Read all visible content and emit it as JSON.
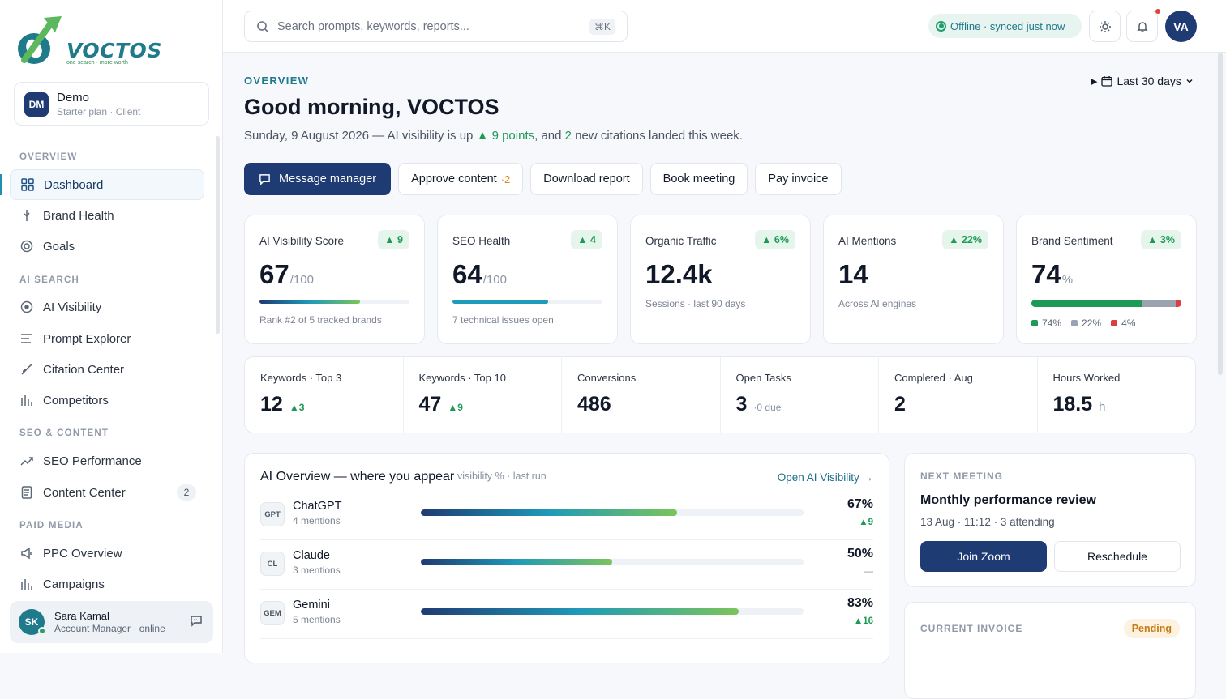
{
  "brand": {
    "name": "VOCTOS",
    "tagline": "one search · more worth"
  },
  "workspace": {
    "initials": "DM",
    "name": "Demo",
    "plan": "Starter plan · Client"
  },
  "sidebar": {
    "sections": [
      {
        "title": "OVERVIEW",
        "items": [
          {
            "label": "Dashboard",
            "icon": "grid-icon",
            "active": true
          },
          {
            "label": "Brand Health",
            "icon": "pulse-icon"
          },
          {
            "label": "Goals",
            "icon": "target-icon"
          }
        ]
      },
      {
        "title": "AI SEARCH",
        "items": [
          {
            "label": "AI Visibility",
            "icon": "eye-icon"
          },
          {
            "label": "Prompt Explorer",
            "icon": "list-icon"
          },
          {
            "label": "Citation Center",
            "icon": "link-icon"
          },
          {
            "label": "Competitors",
            "icon": "bar-chart-icon"
          }
        ]
      },
      {
        "title": "SEO & CONTENT",
        "items": [
          {
            "label": "SEO Performance",
            "icon": "trend-up-icon"
          },
          {
            "label": "Content Center",
            "icon": "document-icon",
            "count": "2"
          }
        ]
      },
      {
        "title": "PAID MEDIA",
        "items": [
          {
            "label": "PPC Overview",
            "icon": "megaphone-icon"
          },
          {
            "label": "Campaigns",
            "icon": "bar-chart-icon"
          }
        ]
      }
    ]
  },
  "user": {
    "initials": "SK",
    "name": "Sara Kamal",
    "role": "Account Manager · online"
  },
  "topbar": {
    "search_placeholder": "Search prompts, keywords, reports...",
    "shortcut": "⌘K",
    "status": "Offline · synced just now",
    "avatar": "VA"
  },
  "header": {
    "eyebrow": "OVERVIEW",
    "greeting": "Good morning, VOCTOS",
    "sub_prefix": "Sunday, 9 August 2026 — AI visibility is up ",
    "sub_points": "▲ 9 points",
    "sub_mid": ", and ",
    "sub_count": "2",
    "sub_suffix": " new citations landed this week.",
    "range": "Last 30 days"
  },
  "actions": {
    "message": "Message manager",
    "approve": "Approve content",
    "approve_badge": "·2",
    "download": "Download report",
    "book": "Book meeting",
    "pay": "Pay invoice"
  },
  "kpis": [
    {
      "title": "AI Visibility Score",
      "delta": "▲ 9",
      "value": "67",
      "suffix": "/100",
      "progress": 0.67,
      "note": "Rank #2 of 5 tracked brands",
      "color": "#1f3b73"
    },
    {
      "title": "SEO Health",
      "delta": "▲ 4",
      "value": "64",
      "suffix": "/100",
      "progress": 0.64,
      "note": "7 technical issues open",
      "color": "#1f9ab8"
    },
    {
      "title": "Organic Traffic",
      "delta": "▲ 6%",
      "value": "12.4k",
      "note": "Sessions · last 90 days"
    },
    {
      "title": "AI Mentions",
      "delta": "▲ 22%",
      "value": "14",
      "note": "Across AI engines"
    },
    {
      "title": "Brand Sentiment",
      "delta": "▲ 3%",
      "value": "74",
      "suffix": "%",
      "sentiment": {
        "positive": "74%",
        "neutral": "22%",
        "negative": "4%"
      }
    }
  ],
  "stats": [
    {
      "label": "Keywords · Top 3",
      "value": "12",
      "sub": "▲3"
    },
    {
      "label": "Keywords · Top 10",
      "value": "47",
      "sub": "▲9"
    },
    {
      "label": "Conversions",
      "value": "486",
      "sub": ""
    },
    {
      "label": "Open Tasks",
      "value": "3",
      "sub": "·0 due"
    },
    {
      "label": "Completed · Aug",
      "value": "2",
      "sub": ""
    },
    {
      "label": "Hours Worked",
      "value": "18.5",
      "sub": "h"
    }
  ],
  "ai_overview": {
    "title": "AI Overview — where you appear",
    "hint": "visibility % · last run",
    "link": "Open AI Visibility →",
    "rows": [
      {
        "abbr": "GPT",
        "name": "ChatGPT",
        "mentions": "4 mentions",
        "pct": "67%",
        "value": 0.67,
        "delta": "▲9"
      },
      {
        "abbr": "CL",
        "name": "Claude",
        "mentions": "3 mentions",
        "pct": "50%",
        "value": 0.5,
        "delta": "—"
      },
      {
        "abbr": "GEM",
        "name": "Gemini",
        "mentions": "5 mentions",
        "pct": "83%",
        "value": 0.83,
        "delta": "▲16"
      }
    ]
  },
  "meeting": {
    "eyebrow": "NEXT MEETING",
    "title": "Monthly performance review",
    "meta": "13 Aug · 11:12 · 3 attending",
    "join": "Join Zoom",
    "reschedule": "Reschedule"
  },
  "invoice": {
    "eyebrow": "CURRENT INVOICE",
    "status": "Pending"
  }
}
